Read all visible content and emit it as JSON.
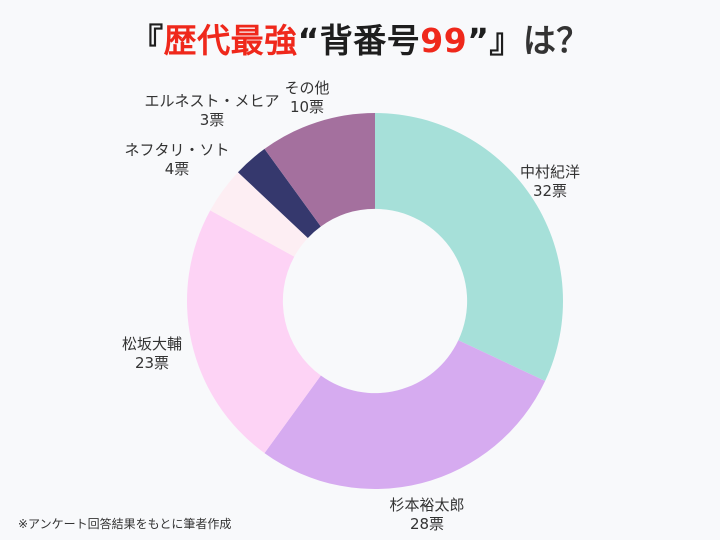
{
  "title": {
    "full_text": "『歴代最強“背番号99”』は？",
    "segments": [
      {
        "text": "『",
        "color": "#1e1e1e"
      },
      {
        "text": "歴代最強",
        "color": "#ef281b"
      },
      {
        "text": "“背番号",
        "color": "#1e1e1e"
      },
      {
        "text": "99",
        "color": "#ef281b"
      },
      {
        "text": "”』",
        "color": "#1e1e1e"
      },
      {
        "text": "は？",
        "color": "#333333"
      }
    ]
  },
  "chart_data": {
    "type": "pie",
    "subtype": "donut",
    "title": "『歴代最強“背番号99”』は？",
    "unit": "票",
    "total_votes": 100,
    "start_angle_deg": 0,
    "direction": "clockwise",
    "donut_hole_ratio": 0.49,
    "slices": [
      {
        "label": "中村紀洋",
        "votes": 32,
        "votes_label": "32票",
        "color": "#a6e0d9"
      },
      {
        "label": "杉本裕太郎",
        "votes": 28,
        "votes_label": "28票",
        "color": "#d6abf0"
      },
      {
        "label": "松坂大輔",
        "votes": 23,
        "votes_label": "23票",
        "color": "#fdd3f5"
      },
      {
        "label": "ネフタリ・ソト",
        "votes": 4,
        "votes_label": "4票",
        "color": "#fdeef3"
      },
      {
        "label": "エルネスト・メヒア",
        "votes": 3,
        "votes_label": "3票",
        "color": "#35386d"
      },
      {
        "label": "その他",
        "votes": 10,
        "votes_label": "10票",
        "color": "#a4709e"
      }
    ]
  },
  "footnote": "※アンケート回答結果をもとに筆者作成",
  "colors": {
    "background": "#f8f9fb",
    "accent_red": "#ef281b",
    "text": "#333333"
  }
}
